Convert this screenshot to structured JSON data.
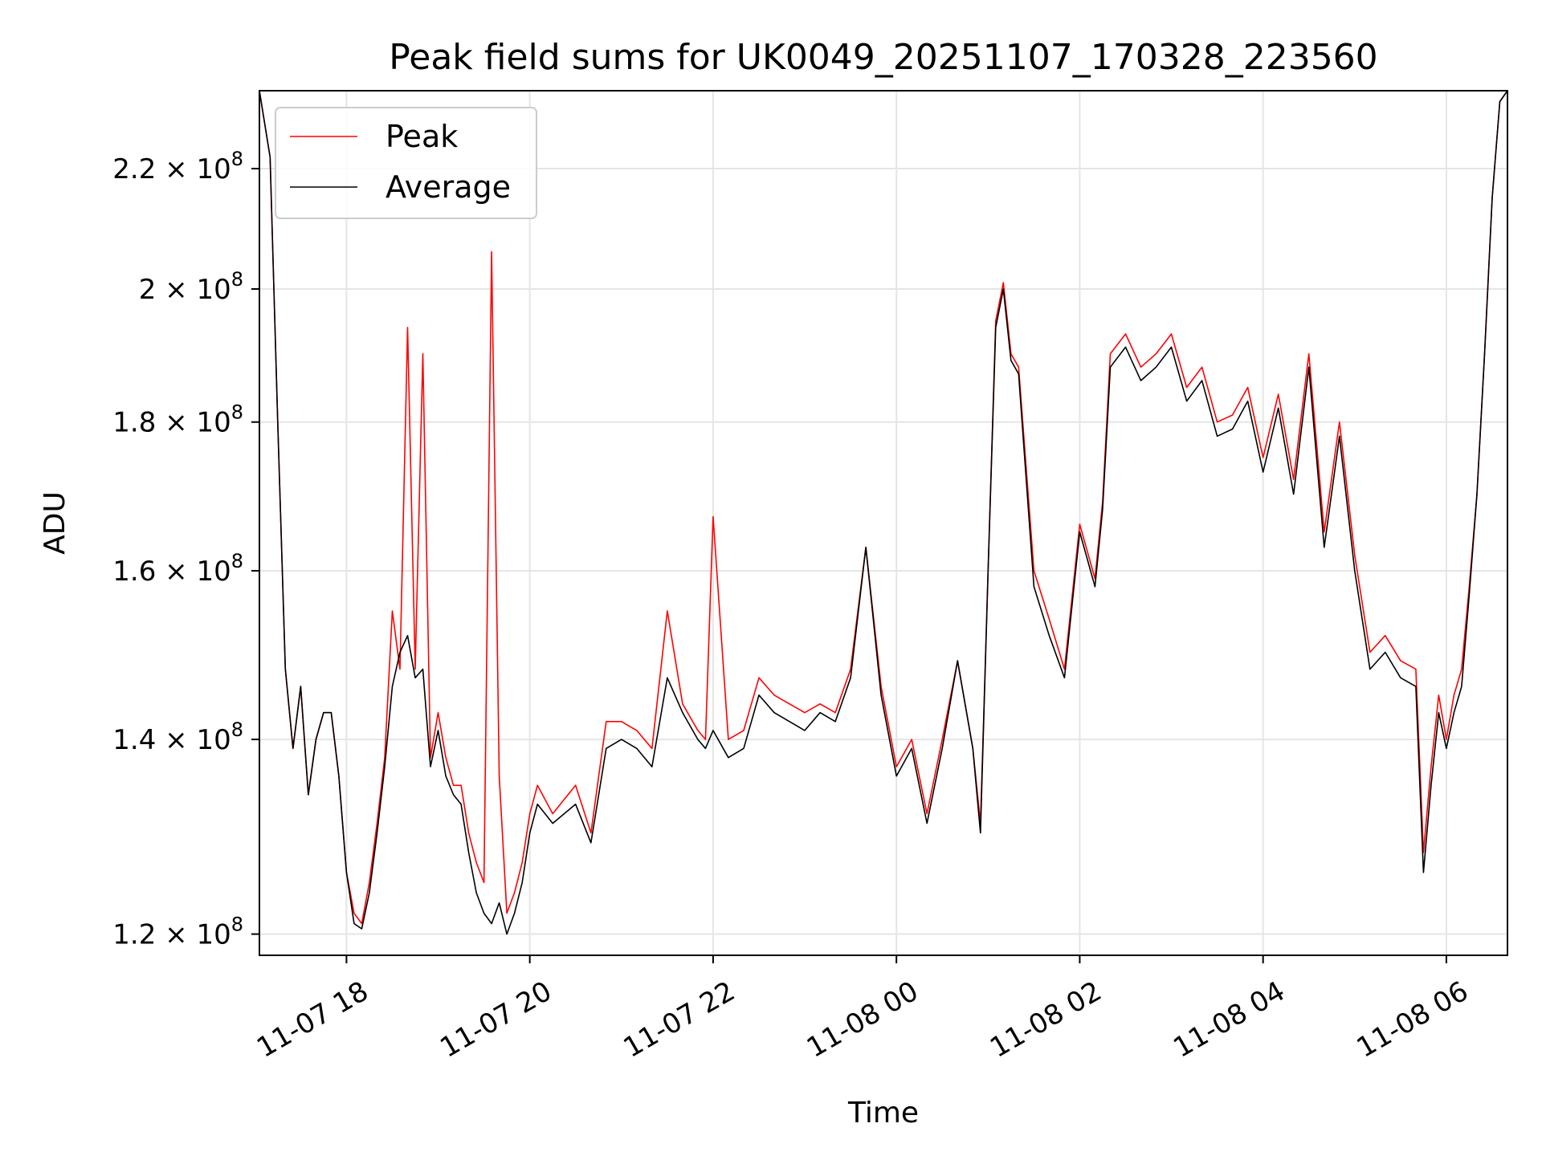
{
  "chart_data": {
    "type": "line",
    "title": "Peak field sums for UK0049_20251107_170328_223560",
    "xlabel": "Time",
    "ylabel": "ADU",
    "y_scale": "log",
    "ylim": [
      118000000,
      234000000
    ],
    "xlim": [
      "2025-11-07 17:03",
      "2025-11-08 06:40"
    ],
    "grid": true,
    "legend_placement": "top-left",
    "x_ticks": [
      {
        "value": "2025-11-07 18:00",
        "label": "11-07 18"
      },
      {
        "value": "2025-11-07 20:00",
        "label": "11-07 20"
      },
      {
        "value": "2025-11-07 22:00",
        "label": "11-07 22"
      },
      {
        "value": "2025-11-08 00:00",
        "label": "11-08 00"
      },
      {
        "value": "2025-11-08 02:00",
        "label": "11-08 02"
      },
      {
        "value": "2025-11-08 04:00",
        "label": "11-08 04"
      },
      {
        "value": "2025-11-08 06:00",
        "label": "11-08 06"
      }
    ],
    "y_ticks": [
      {
        "value": 120000000,
        "mantissa": "1.2",
        "exponent": "8"
      },
      {
        "value": 140000000,
        "mantissa": "1.4",
        "exponent": "8"
      },
      {
        "value": 160000000,
        "mantissa": "1.6",
        "exponent": "8"
      },
      {
        "value": 180000000,
        "mantissa": "1.8",
        "exponent": "8"
      },
      {
        "value": 200000000,
        "mantissa": "2",
        "exponent": "8"
      },
      {
        "value": 220000000,
        "mantissa": "2.2",
        "exponent": "8"
      }
    ],
    "series": [
      {
        "name": "Peak",
        "color": "#ff0000",
        "x": [
          "2025-11-07 17:03",
          "2025-11-07 17:10",
          "2025-11-07 17:15",
          "2025-11-07 17:20",
          "2025-11-07 17:25",
          "2025-11-07 17:30",
          "2025-11-07 17:35",
          "2025-11-07 17:40",
          "2025-11-07 17:45",
          "2025-11-07 17:50",
          "2025-11-07 17:55",
          "2025-11-07 18:00",
          "2025-11-07 18:05",
          "2025-11-07 18:10",
          "2025-11-07 18:15",
          "2025-11-07 18:20",
          "2025-11-07 18:25",
          "2025-11-07 18:30",
          "2025-11-07 18:35",
          "2025-11-07 18:40",
          "2025-11-07 18:45",
          "2025-11-07 18:50",
          "2025-11-07 18:55",
          "2025-11-07 19:00",
          "2025-11-07 19:05",
          "2025-11-07 19:10",
          "2025-11-07 19:15",
          "2025-11-07 19:20",
          "2025-11-07 19:25",
          "2025-11-07 19:30",
          "2025-11-07 19:35",
          "2025-11-07 19:40",
          "2025-11-07 19:45",
          "2025-11-07 19:50",
          "2025-11-07 19:55",
          "2025-11-07 20:00",
          "2025-11-07 20:05",
          "2025-11-07 20:15",
          "2025-11-07 20:30",
          "2025-11-07 20:40",
          "2025-11-07 20:50",
          "2025-11-07 21:00",
          "2025-11-07 21:10",
          "2025-11-07 21:20",
          "2025-11-07 21:30",
          "2025-11-07 21:40",
          "2025-11-07 21:50",
          "2025-11-07 21:55",
          "2025-11-07 22:00",
          "2025-11-07 22:10",
          "2025-11-07 22:20",
          "2025-11-07 22:30",
          "2025-11-07 22:40",
          "2025-11-07 22:50",
          "2025-11-07 23:00",
          "2025-11-07 23:10",
          "2025-11-07 23:20",
          "2025-11-07 23:30",
          "2025-11-07 23:40",
          "2025-11-07 23:50",
          "2025-11-08 00:00",
          "2025-11-08 00:10",
          "2025-11-08 00:20",
          "2025-11-08 00:30",
          "2025-11-08 00:40",
          "2025-11-08 00:50",
          "2025-11-08 00:55",
          "2025-11-08 01:00",
          "2025-11-08 01:05",
          "2025-11-08 01:10",
          "2025-11-08 01:15",
          "2025-11-08 01:20",
          "2025-11-08 01:30",
          "2025-11-08 01:40",
          "2025-11-08 01:50",
          "2025-11-08 02:00",
          "2025-11-08 02:10",
          "2025-11-08 02:15",
          "2025-11-08 02:20",
          "2025-11-08 02:30",
          "2025-11-08 02:40",
          "2025-11-08 02:50",
          "2025-11-08 03:00",
          "2025-11-08 03:10",
          "2025-11-08 03:20",
          "2025-11-08 03:30",
          "2025-11-08 03:40",
          "2025-11-08 03:50",
          "2025-11-08 04:00",
          "2025-11-08 04:10",
          "2025-11-08 04:20",
          "2025-11-08 04:30",
          "2025-11-08 04:40",
          "2025-11-08 04:50",
          "2025-11-08 05:00",
          "2025-11-08 05:10",
          "2025-11-08 05:20",
          "2025-11-08 05:30",
          "2025-11-08 05:40",
          "2025-11-08 05:45",
          "2025-11-08 05:50",
          "2025-11-08 05:55",
          "2025-11-08 06:00",
          "2025-11-08 06:05",
          "2025-11-08 06:10",
          "2025-11-08 06:15",
          "2025-11-08 06:20",
          "2025-11-08 06:25",
          "2025-11-08 06:30",
          "2025-11-08 06:35",
          "2025-11-08 06:40"
        ],
        "values": [
          234000000,
          222000000,
          180000000,
          148000000,
          139000000,
          146000000,
          134000000,
          140000000,
          143000000,
          143000000,
          136000000,
          126000000,
          122000000,
          121000000,
          125000000,
          131000000,
          138000000,
          155000000,
          148000000,
          194000000,
          148000000,
          190000000,
          138000000,
          143000000,
          138000000,
          135000000,
          135000000,
          130000000,
          127000000,
          125000000,
          206000000,
          136000000,
          122000000,
          124000000,
          127000000,
          132000000,
          135000000,
          132000000,
          135000000,
          130000000,
          142000000,
          142000000,
          141000000,
          139000000,
          155000000,
          144000000,
          141000000,
          140000000,
          167000000,
          140000000,
          141000000,
          147000000,
          145000000,
          144000000,
          143000000,
          144000000,
          143000000,
          148000000,
          163000000,
          146000000,
          137000000,
          140000000,
          132000000,
          140000000,
          149000000,
          139000000,
          131000000,
          160000000,
          195000000,
          201000000,
          190000000,
          188000000,
          160000000,
          154000000,
          148000000,
          166000000,
          159000000,
          169000000,
          190000000,
          193000000,
          188000000,
          190000000,
          193000000,
          185000000,
          188000000,
          180000000,
          181000000,
          185000000,
          175000000,
          184000000,
          172000000,
          190000000,
          165000000,
          180000000,
          162000000,
          150000000,
          152000000,
          149000000,
          148000000,
          128000000,
          137000000,
          145000000,
          140000000,
          145000000,
          148000000,
          158000000,
          170000000,
          190000000,
          215000000,
          232000000,
          234000000
        ]
      },
      {
        "name": "Average",
        "color": "#000000",
        "x": [
          "2025-11-07 17:03",
          "2025-11-07 17:10",
          "2025-11-07 17:15",
          "2025-11-07 17:20",
          "2025-11-07 17:25",
          "2025-11-07 17:30",
          "2025-11-07 17:35",
          "2025-11-07 17:40",
          "2025-11-07 17:45",
          "2025-11-07 17:50",
          "2025-11-07 17:55",
          "2025-11-07 18:00",
          "2025-11-07 18:05",
          "2025-11-07 18:10",
          "2025-11-07 18:15",
          "2025-11-07 18:20",
          "2025-11-07 18:25",
          "2025-11-07 18:30",
          "2025-11-07 18:35",
          "2025-11-07 18:40",
          "2025-11-07 18:45",
          "2025-11-07 18:50",
          "2025-11-07 18:55",
          "2025-11-07 19:00",
          "2025-11-07 19:05",
          "2025-11-07 19:10",
          "2025-11-07 19:15",
          "2025-11-07 19:20",
          "2025-11-07 19:25",
          "2025-11-07 19:30",
          "2025-11-07 19:35",
          "2025-11-07 19:40",
          "2025-11-07 19:45",
          "2025-11-07 19:50",
          "2025-11-07 19:55",
          "2025-11-07 20:00",
          "2025-11-07 20:05",
          "2025-11-07 20:15",
          "2025-11-07 20:30",
          "2025-11-07 20:40",
          "2025-11-07 20:50",
          "2025-11-07 21:00",
          "2025-11-07 21:10",
          "2025-11-07 21:20",
          "2025-11-07 21:30",
          "2025-11-07 21:40",
          "2025-11-07 21:50",
          "2025-11-07 21:55",
          "2025-11-07 22:00",
          "2025-11-07 22:10",
          "2025-11-07 22:20",
          "2025-11-07 22:30",
          "2025-11-07 22:40",
          "2025-11-07 22:50",
          "2025-11-07 23:00",
          "2025-11-07 23:10",
          "2025-11-07 23:20",
          "2025-11-07 23:30",
          "2025-11-07 23:40",
          "2025-11-07 23:50",
          "2025-11-08 00:00",
          "2025-11-08 00:10",
          "2025-11-08 00:20",
          "2025-11-08 00:30",
          "2025-11-08 00:40",
          "2025-11-08 00:50",
          "2025-11-08 00:55",
          "2025-11-08 01:00",
          "2025-11-08 01:05",
          "2025-11-08 01:10",
          "2025-11-08 01:15",
          "2025-11-08 01:20",
          "2025-11-08 01:30",
          "2025-11-08 01:40",
          "2025-11-08 01:50",
          "2025-11-08 02:00",
          "2025-11-08 02:10",
          "2025-11-08 02:15",
          "2025-11-08 02:20",
          "2025-11-08 02:30",
          "2025-11-08 02:40",
          "2025-11-08 02:50",
          "2025-11-08 03:00",
          "2025-11-08 03:10",
          "2025-11-08 03:20",
          "2025-11-08 03:30",
          "2025-11-08 03:40",
          "2025-11-08 03:50",
          "2025-11-08 04:00",
          "2025-11-08 04:10",
          "2025-11-08 04:20",
          "2025-11-08 04:30",
          "2025-11-08 04:40",
          "2025-11-08 04:50",
          "2025-11-08 05:00",
          "2025-11-08 05:10",
          "2025-11-08 05:20",
          "2025-11-08 05:30",
          "2025-11-08 05:40",
          "2025-11-08 05:45",
          "2025-11-08 05:50",
          "2025-11-08 05:55",
          "2025-11-08 06:00",
          "2025-11-08 06:05",
          "2025-11-08 06:10",
          "2025-11-08 06:15",
          "2025-11-08 06:20",
          "2025-11-08 06:25",
          "2025-11-08 06:30",
          "2025-11-08 06:35",
          "2025-11-08 06:40"
        ],
        "values": [
          234000000,
          222000000,
          180000000,
          148000000,
          139000000,
          146000000,
          134000000,
          140000000,
          143000000,
          143000000,
          136000000,
          126000000,
          121000000,
          120500000,
          124000000,
          130000000,
          137000000,
          146000000,
          150000000,
          152000000,
          147000000,
          148000000,
          137000000,
          141000000,
          136000000,
          134000000,
          133000000,
          128000000,
          124000000,
          122000000,
          121000000,
          123000000,
          120000000,
          122000000,
          125000000,
          130000000,
          133000000,
          131000000,
          133000000,
          129000000,
          139000000,
          140000000,
          139000000,
          137000000,
          147000000,
          143000000,
          140000000,
          139000000,
          141000000,
          138000000,
          139000000,
          145000000,
          143000000,
          142000000,
          141000000,
          143000000,
          142000000,
          147000000,
          163000000,
          145000000,
          136000000,
          139000000,
          131000000,
          139000000,
          149000000,
          139000000,
          130000000,
          160000000,
          194000000,
          200000000,
          189000000,
          187000000,
          158000000,
          152000000,
          147000000,
          165000000,
          158000000,
          168000000,
          188000000,
          191000000,
          186000000,
          188000000,
          191000000,
          183000000,
          186000000,
          178000000,
          179000000,
          183000000,
          173000000,
          182000000,
          170000000,
          188000000,
          163000000,
          178000000,
          160000000,
          148000000,
          150000000,
          147000000,
          146000000,
          126000000,
          135000000,
          143000000,
          139000000,
          143000000,
          146000000,
          157000000,
          170000000,
          190000000,
          215000000,
          232000000,
          234000000
        ]
      }
    ]
  }
}
